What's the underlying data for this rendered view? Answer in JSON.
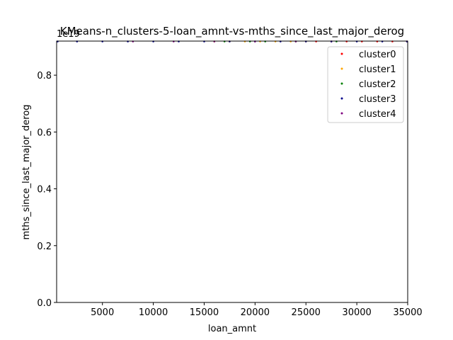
{
  "chart_data": {
    "type": "scatter",
    "title": "KMeans-n_clusters-5-loan_amnt-vs-mths_since_last_major_derog",
    "xlabel": "loan_amnt",
    "ylabel": "mths_since_last_major_derog",
    "y_offset_label": "1e19",
    "xlim": [
      500,
      35000
    ],
    "ylim": [
      0,
      0.92
    ],
    "xticks": [
      5000,
      10000,
      15000,
      20000,
      25000,
      30000,
      35000
    ],
    "xtick_labels": [
      "5000",
      "10000",
      "15000",
      "20000",
      "25000",
      "30000",
      "35000"
    ],
    "yticks": [
      0.0,
      0.2,
      0.4,
      0.6,
      0.8
    ],
    "ytick_labels": [
      "0.0",
      "0.2",
      "0.4",
      "0.6",
      "0.8"
    ],
    "grid": false,
    "legend_position": "upper right",
    "series": [
      {
        "name": "cluster0",
        "color": "#ff0000",
        "x": [
          26000,
          27500,
          29000,
          30500,
          32000,
          33500,
          35000
        ],
        "y": [
          0.922,
          0.922,
          0.922,
          0.922,
          0.922,
          0.922,
          0.922
        ]
      },
      {
        "name": "cluster1",
        "color": "#ffa500",
        "x": [
          16000,
          17500,
          19000,
          20500,
          22000,
          23500,
          25000
        ],
        "y": [
          0.922,
          0.922,
          0.922,
          0.922,
          0.922,
          0.922,
          0.922
        ]
      },
      {
        "name": "cluster2",
        "color": "#008000",
        "x": [
          17000,
          19500,
          21000,
          24000,
          28000
        ],
        "y": [
          0.922,
          0.922,
          0.922,
          0.922,
          0.922
        ]
      },
      {
        "name": "cluster3",
        "color": "#00008b",
        "x": [
          600,
          2500,
          5000,
          7500,
          10000,
          12500,
          15000,
          17500,
          20000,
          22500,
          25000,
          27500,
          30000,
          32500,
          35000
        ],
        "y": [
          0.922,
          0.922,
          0.922,
          0.922,
          0.922,
          0.922,
          0.922,
          0.922,
          0.922,
          0.922,
          0.922,
          0.922,
          0.922,
          0.922,
          0.922
        ]
      },
      {
        "name": "cluster4",
        "color": "#800080",
        "x": [
          8000,
          12000,
          16000,
          20000,
          24000
        ],
        "y": [
          0.922,
          0.922,
          0.922,
          0.922,
          0.922
        ]
      }
    ]
  }
}
